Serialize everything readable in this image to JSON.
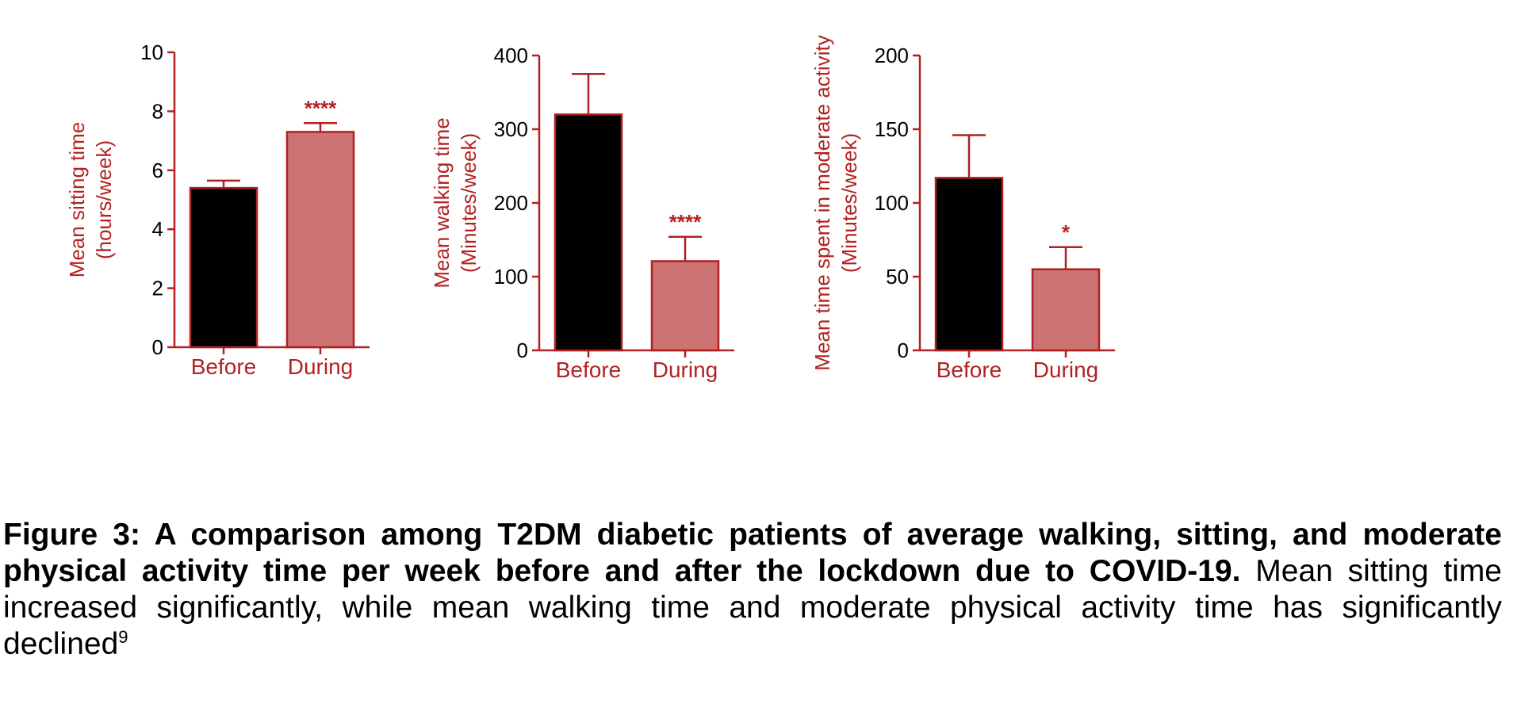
{
  "colors": {
    "axis": "#b22222",
    "before_fill": "#000000",
    "during_fill": "#cd7373",
    "bar_edge": "#b02020",
    "text_black": "#000000"
  },
  "chart_data": [
    {
      "type": "bar",
      "title": "",
      "categories": [
        "Before",
        "During"
      ],
      "values": [
        5.4,
        7.3
      ],
      "errors": [
        0.25,
        0.3
      ],
      "significance": [
        "",
        "****"
      ],
      "ylabel": [
        "Mean sitting time",
        "(hours/week)"
      ],
      "xlabel": "",
      "ylim": [
        0,
        10
      ],
      "yticks": [
        0,
        2,
        4,
        6,
        8,
        10
      ],
      "grid": false
    },
    {
      "type": "bar",
      "title": "",
      "categories": [
        "Before",
        "During"
      ],
      "values": [
        320,
        121
      ],
      "errors": [
        55,
        33
      ],
      "significance": [
        "",
        "****"
      ],
      "ylabel": [
        "Mean walking time",
        "(Minutes/week)"
      ],
      "xlabel": "",
      "ylim": [
        0,
        400
      ],
      "yticks": [
        0,
        100,
        200,
        300,
        400
      ],
      "grid": false
    },
    {
      "type": "bar",
      "title": "",
      "categories": [
        "Before",
        "During"
      ],
      "values": [
        117,
        55
      ],
      "errors": [
        29,
        15
      ],
      "significance": [
        "",
        "*"
      ],
      "ylabel": [
        "Mean time spent in moderate activity",
        "(Minutes/week)"
      ],
      "xlabel": "",
      "ylim": [
        0,
        200
      ],
      "yticks": [
        0,
        50,
        100,
        150,
        200
      ],
      "grid": false
    }
  ],
  "caption": {
    "bold": "Figure 3: A comparison among T2DM diabetic patients of average walking, sitting, and moderate physical activity time per week before and after the lockdown due to COVID-19.",
    "normal": " Mean sitting time increased significantly, while mean walking time and moderate physical activity time has significantly declined",
    "superscript": "9"
  }
}
